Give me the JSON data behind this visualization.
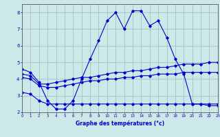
{
  "xlabel": "Graphe des températures (°c)",
  "background_color": "#cce8e8",
  "grid_color": "#99bbbb",
  "line_color": "#0000cc",
  "xlim": [
    0,
    23
  ],
  "ylim": [
    2,
    8.5
  ],
  "yticks": [
    2,
    3,
    4,
    5,
    6,
    7,
    8
  ],
  "xticks": [
    0,
    1,
    2,
    3,
    4,
    5,
    6,
    7,
    8,
    9,
    10,
    11,
    12,
    13,
    14,
    15,
    16,
    17,
    18,
    19,
    20,
    21,
    22,
    23
  ],
  "line1_x": [
    0,
    1,
    2,
    3,
    4,
    5,
    6,
    7,
    8,
    9,
    10,
    11,
    12,
    13,
    14,
    15,
    16,
    17,
    18,
    19,
    20,
    21,
    22,
    23
  ],
  "line1_y": [
    4.6,
    4.4,
    3.8,
    2.7,
    2.2,
    2.2,
    2.7,
    4.0,
    5.2,
    6.3,
    7.5,
    8.0,
    7.0,
    8.1,
    8.1,
    7.2,
    7.5,
    6.5,
    5.2,
    4.3,
    2.5,
    2.5,
    2.4,
    2.4
  ],
  "line2_x": [
    0,
    1,
    2,
    3,
    4,
    5,
    6,
    7,
    8,
    9,
    10,
    11,
    12,
    13,
    14,
    15,
    16,
    17,
    18,
    19,
    20,
    21,
    22,
    23
  ],
  "line2_y": [
    4.3,
    4.2,
    3.7,
    3.7,
    3.8,
    3.9,
    4.0,
    4.1,
    4.1,
    4.2,
    4.3,
    4.4,
    4.4,
    4.5,
    4.5,
    4.6,
    4.7,
    4.7,
    4.8,
    4.9,
    4.9,
    4.9,
    5.0,
    5.0
  ],
  "line3_x": [
    0,
    1,
    2,
    3,
    4,
    5,
    6,
    7,
    8,
    9,
    10,
    11,
    12,
    13,
    14,
    15,
    16,
    17,
    18,
    19,
    20,
    21,
    22,
    23
  ],
  "line3_y": [
    4.1,
    4.0,
    3.6,
    3.5,
    3.5,
    3.6,
    3.7,
    3.8,
    3.9,
    3.9,
    4.0,
    4.0,
    4.1,
    4.1,
    4.2,
    4.2,
    4.3,
    4.3,
    4.3,
    4.4,
    4.4,
    4.4,
    4.4,
    4.4
  ],
  "line4_x": [
    0,
    1,
    2,
    3,
    4,
    5,
    6,
    7,
    8,
    9,
    10,
    11,
    12,
    13,
    14,
    15,
    16,
    17,
    18,
    19,
    20,
    21,
    22,
    23
  ],
  "line4_y": [
    3.2,
    3.1,
    2.7,
    2.5,
    2.5,
    2.5,
    2.5,
    2.5,
    2.5,
    2.5,
    2.5,
    2.5,
    2.5,
    2.5,
    2.5,
    2.5,
    2.5,
    2.5,
    2.5,
    2.5,
    2.5,
    2.5,
    2.5,
    2.5
  ]
}
